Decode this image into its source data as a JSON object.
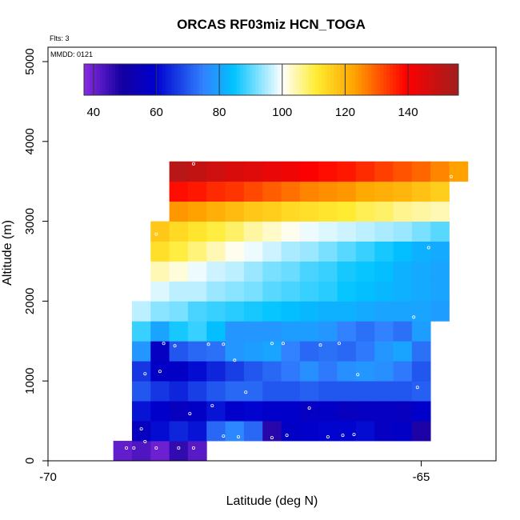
{
  "chart_data": {
    "type": "heatmap",
    "title": "ORCAS RF03miz HCN_TOGA",
    "xlabel": "Latitude (deg N)",
    "ylabel": "Altitude (m)",
    "flights_note": "Flts: 3",
    "date_note": "MMDD: 0121",
    "xlim": [
      -70,
      -64
    ],
    "ylim": [
      0,
      5000
    ],
    "x_ticks": [
      -70,
      -65
    ],
    "y_ticks": [
      0,
      1000,
      2000,
      3000,
      4000,
      5000
    ],
    "colorbar": {
      "min": 37,
      "max": 156,
      "ticks": [
        40,
        60,
        80,
        100,
        120,
        140
      ]
    },
    "cell_width_deg": 0.25,
    "cell_height_m": 250,
    "rows": [
      {
        "alt": 125,
        "lats": [
          -69.0,
          -68.75,
          -68.5,
          -68.25,
          -68.0
        ],
        "values": [
          41,
          43,
          40,
          46,
          42
        ]
      },
      {
        "alt": 375,
        "lats": [
          -68.75,
          -68.5,
          -68.25,
          -68.0,
          -67.75,
          -67.5,
          -67.25,
          -67.0,
          -66.75,
          -66.5,
          -66.25,
          -66.0,
          -65.75,
          -65.5,
          -65.25,
          -65.0
        ],
        "values": [
          56,
          61,
          64,
          62,
          72,
          76,
          72,
          47,
          58,
          59,
          60,
          60,
          61,
          57,
          58,
          48
        ]
      },
      {
        "alt": 625,
        "lats": [
          -68.75,
          -68.5,
          -68.25,
          -68.0,
          -67.75,
          -67.5,
          -67.25,
          -67.0,
          -66.75,
          -66.5,
          -66.25,
          -66.0,
          -65.75,
          -65.5,
          -65.25,
          -65.0
        ],
        "values": [
          62,
          59,
          56,
          58,
          62,
          59,
          60,
          59,
          59,
          57,
          58,
          56,
          57,
          57,
          56,
          59
        ]
      },
      {
        "alt": 875,
        "lats": [
          -68.75,
          -68.5,
          -68.25,
          -68.0,
          -67.75,
          -67.5,
          -67.25,
          -67.0,
          -66.75,
          -66.5,
          -66.25,
          -66.0,
          -65.75,
          -65.5,
          -65.25,
          -65.0
        ],
        "values": [
          70,
          66,
          64,
          67,
          70,
          72,
          72,
          70,
          70,
          71,
          70,
          70,
          70,
          70,
          70,
          71
        ]
      },
      {
        "alt": 1125,
        "lats": [
          -68.75,
          -68.5,
          -68.25,
          -68.0,
          -67.75,
          -67.5,
          -67.25,
          -67.0,
          -66.75,
          -66.5,
          -66.25,
          -66.0,
          -65.75,
          -65.5,
          -65.25,
          -65.0
        ],
        "values": [
          66,
          58,
          58,
          61,
          64,
          67,
          70,
          72,
          74,
          77,
          74,
          77,
          78,
          77,
          74,
          70
        ]
      },
      {
        "alt": 1375,
        "lats": [
          -68.75,
          -68.5,
          -68.25,
          -68.0,
          -67.75,
          -67.5,
          -67.25,
          -67.0,
          -66.75,
          -66.5,
          -66.25,
          -66.0,
          -65.75,
          -65.5,
          -65.25,
          -65.0
        ],
        "values": [
          78,
          57,
          70,
          72,
          73,
          78,
          79,
          80,
          75,
          72,
          73,
          72,
          74,
          78,
          80,
          73
        ]
      },
      {
        "alt": 1625,
        "lats": [
          -68.75,
          -68.5,
          -68.25,
          -68.0,
          -67.75,
          -67.5,
          -67.25,
          -67.0,
          -66.75,
          -66.5,
          -66.25,
          -66.0,
          -65.75,
          -65.5,
          -65.25,
          -65.0
        ],
        "values": [
          88,
          80,
          86,
          88,
          84,
          78,
          78,
          78,
          79,
          79,
          78,
          75,
          73,
          75,
          73,
          79
        ]
      },
      {
        "alt": 1875,
        "lats": [
          -68.75,
          -68.5,
          -68.25,
          -68.0,
          -67.75,
          -67.5,
          -67.25,
          -67.0,
          -66.75,
          -66.5,
          -66.25,
          -66.0,
          -65.75,
          -65.5,
          -65.25,
          -65.0,
          -64.75
        ],
        "values": [
          96,
          93,
          92,
          89,
          88,
          87,
          86,
          85,
          84,
          83,
          82,
          82,
          81,
          80,
          80,
          80,
          79
        ]
      },
      {
        "alt": 2125,
        "lats": [
          -68.5,
          -68.25,
          -68.0,
          -67.75,
          -67.5,
          -67.25,
          -67.0,
          -66.75,
          -66.5,
          -66.25,
          -66.0,
          -65.75,
          -65.5,
          -65.25,
          -65.0,
          -64.75
        ],
        "values": [
          98,
          96,
          96,
          94,
          93,
          92,
          90,
          89,
          88,
          87,
          85,
          84,
          83,
          82,
          81,
          80
        ]
      },
      {
        "alt": 2375,
        "lats": [
          -68.5,
          -68.25,
          -68.0,
          -67.75,
          -67.5,
          -67.25,
          -67.0,
          -66.75,
          -66.5,
          -66.25,
          -66.0,
          -65.75,
          -65.5,
          -65.25,
          -65.0,
          -64.75
        ],
        "values": [
          104,
          102,
          99,
          97,
          96,
          94,
          92,
          91,
          89,
          88,
          86,
          85,
          84,
          82,
          81,
          80
        ]
      },
      {
        "alt": 2625,
        "lats": [
          -68.5,
          -68.25,
          -68.0,
          -67.75,
          -67.5,
          -67.25,
          -67.0,
          -66.75,
          -66.5,
          -66.25,
          -66.0,
          -65.75,
          -65.5,
          -65.25,
          -65.0,
          -64.75
        ],
        "values": [
          113,
          110,
          107,
          104,
          101,
          99,
          97,
          95,
          94,
          92,
          90,
          88,
          86,
          84,
          82,
          81
        ]
      },
      {
        "alt": 2875,
        "lats": [
          -68.5,
          -68.25,
          -68.0,
          -67.75,
          -67.5,
          -67.25,
          -67.0,
          -66.75,
          -66.5,
          -66.25,
          -66.0,
          -65.75,
          -65.5,
          -65.25,
          -65.0,
          -64.75
        ],
        "values": [
          117,
          114,
          112,
          110,
          108,
          105,
          103,
          101,
          99,
          98,
          97,
          96,
          95,
          94,
          92,
          90
        ]
      },
      {
        "alt": 3125,
        "lats": [
          -68.25,
          -68.0,
          -67.75,
          -67.5,
          -67.25,
          -67.0,
          -66.75,
          -66.5,
          -66.25,
          -66.0,
          -65.75,
          -65.5,
          -65.25,
          -65.0,
          -64.75
        ],
        "values": [
          124,
          123,
          121,
          119,
          117,
          116,
          114,
          113,
          112,
          111,
          109,
          108,
          106,
          105,
          104
        ]
      },
      {
        "alt": 3375,
        "lats": [
          -68.25,
          -68.0,
          -67.75,
          -67.5,
          -67.25,
          -67.0,
          -66.75,
          -66.5,
          -66.25,
          -66.0,
          -65.75,
          -65.5,
          -65.25,
          -65.0,
          -64.75
        ],
        "values": [
          138,
          137,
          135,
          134,
          132,
          130,
          128,
          126,
          125,
          124,
          122,
          121,
          120,
          118,
          116
        ]
      },
      {
        "alt": 3625,
        "lats": [
          -68.25,
          -68.0,
          -67.75,
          -67.5,
          -67.25,
          -67.0,
          -66.75,
          -66.5,
          -66.25,
          -66.0,
          -65.75,
          -65.5,
          -65.25,
          -65.0,
          -64.75,
          -64.5
        ],
        "values": [
          152,
          150,
          148,
          146,
          145,
          143,
          142,
          140,
          138,
          137,
          135,
          133,
          131,
          129,
          126,
          123
        ]
      }
    ],
    "sample_points": [
      [
        -68.95,
        160
      ],
      [
        -68.85,
        160
      ],
      [
        -68.7,
        240
      ],
      [
        -68.55,
        160
      ],
      [
        -68.25,
        160
      ],
      [
        -68.05,
        160
      ],
      [
        -68.75,
        400
      ],
      [
        -67.65,
        310
      ],
      [
        -67.45,
        300
      ],
      [
        -67.0,
        290
      ],
      [
        -66.8,
        320
      ],
      [
        -66.25,
        300
      ],
      [
        -66.05,
        320
      ],
      [
        -65.9,
        330
      ],
      [
        -68.1,
        590
      ],
      [
        -67.8,
        690
      ],
      [
        -66.5,
        660
      ],
      [
        -68.7,
        1090
      ],
      [
        -68.5,
        1120
      ],
      [
        -67.35,
        860
      ],
      [
        -65.05,
        920
      ],
      [
        -68.45,
        1470
      ],
      [
        -68.3,
        1440
      ],
      [
        -67.85,
        1460
      ],
      [
        -67.65,
        1460
      ],
      [
        -67.5,
        1260
      ],
      [
        -67.0,
        1470
      ],
      [
        -66.85,
        1470
      ],
      [
        -66.35,
        1450
      ],
      [
        -66.1,
        1470
      ],
      [
        -65.85,
        1080
      ],
      [
        -65.1,
        1800
      ],
      [
        -64.9,
        2670
      ],
      [
        -68.55,
        2840
      ],
      [
        -68.05,
        3720
      ],
      [
        -64.6,
        3560
      ]
    ]
  }
}
